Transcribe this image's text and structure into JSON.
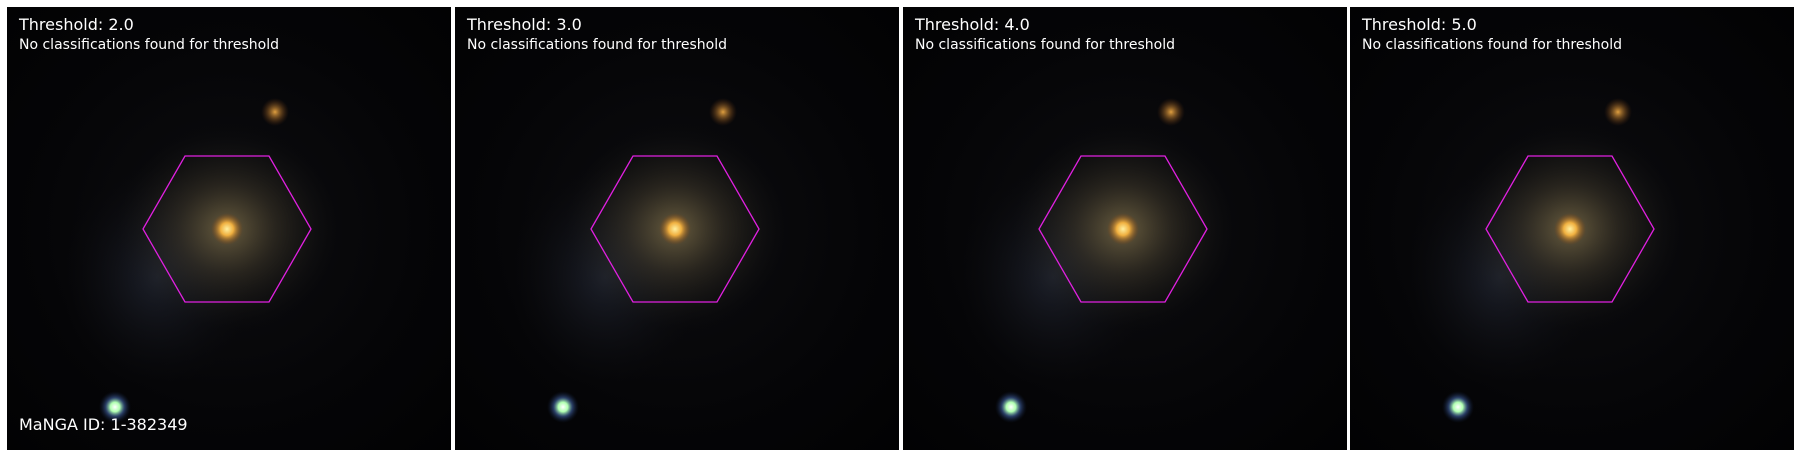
{
  "panels": [
    {
      "title": "Threshold: 2.0",
      "subtitle": "No classifications found for threshold"
    },
    {
      "title": "Threshold: 3.0",
      "subtitle": "No classifications found for threshold"
    },
    {
      "title": "Threshold: 4.0",
      "subtitle": "No classifications found for threshold"
    },
    {
      "title": "Threshold: 5.0",
      "subtitle": "No classifications found for threshold"
    }
  ],
  "manga_id": "MaNGA ID: 1-382349",
  "colors": {
    "hexagon_outline": "#e020e0",
    "text": "#ffffff",
    "background": "#ffffff"
  }
}
